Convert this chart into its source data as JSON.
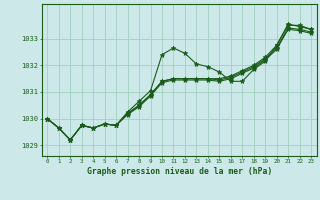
{
  "xlabel": "Graphe pression niveau de la mer (hPa)",
  "bg_color": "#cce8e8",
  "grid_color": "#99ccbb",
  "line_color": "#1a5c1a",
  "xlim": [
    -0.5,
    23.5
  ],
  "ylim": [
    1028.6,
    1034.3
  ],
  "yticks": [
    1029,
    1030,
    1031,
    1032,
    1033
  ],
  "xticks": [
    0,
    1,
    2,
    3,
    4,
    5,
    6,
    7,
    8,
    9,
    10,
    11,
    12,
    13,
    14,
    15,
    16,
    17,
    18,
    19,
    20,
    21,
    22,
    23
  ],
  "series": [
    [
      1030.0,
      1029.65,
      1029.2,
      1029.75,
      1029.65,
      1029.8,
      1029.75,
      1030.25,
      1030.65,
      1031.05,
      1032.4,
      1032.65,
      1032.45,
      1032.05,
      1031.95,
      1031.75,
      1031.4,
      1031.4,
      1031.85,
      1032.15,
      1032.75,
      1033.55,
      1033.45,
      1033.35
    ],
    [
      1030.0,
      1029.65,
      1029.2,
      1029.75,
      1029.65,
      1029.8,
      1029.75,
      1030.2,
      1030.5,
      1030.9,
      1031.4,
      1031.5,
      1031.5,
      1031.5,
      1031.5,
      1031.5,
      1031.6,
      1031.8,
      1032.0,
      1032.3,
      1032.75,
      1033.5,
      1033.5,
      1033.35
    ],
    [
      1030.0,
      1029.65,
      1029.2,
      1029.75,
      1029.65,
      1029.8,
      1029.75,
      1030.2,
      1030.5,
      1030.9,
      1031.4,
      1031.5,
      1031.5,
      1031.5,
      1031.5,
      1031.45,
      1031.55,
      1031.75,
      1031.95,
      1032.25,
      1032.65,
      1033.4,
      1033.35,
      1033.25
    ],
    [
      1030.0,
      1029.65,
      1029.2,
      1029.75,
      1029.65,
      1029.8,
      1029.75,
      1030.15,
      1030.45,
      1030.85,
      1031.35,
      1031.45,
      1031.45,
      1031.45,
      1031.45,
      1031.4,
      1031.5,
      1031.7,
      1031.9,
      1032.2,
      1032.6,
      1033.35,
      1033.3,
      1033.2
    ]
  ]
}
